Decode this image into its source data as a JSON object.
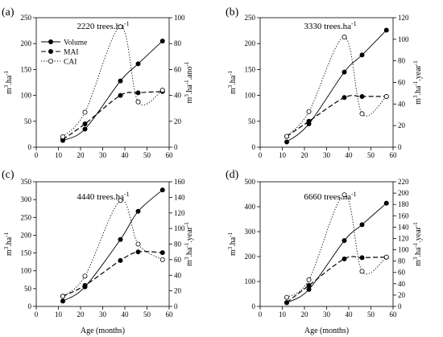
{
  "legend": {
    "placement": "top-left of panel (a)",
    "entries": [
      {
        "series": "Volume",
        "label": "Volume",
        "marker": "filled-circle",
        "line": "solid"
      },
      {
        "series": "MAI",
        "label": "MAI",
        "marker": "filled-circle",
        "line": "dashed"
      },
      {
        "series": "CAI",
        "label": "CAI",
        "marker": "open-circle",
        "line": "dotted"
      }
    ]
  },
  "chart_data": [
    {
      "type": "line",
      "panel": "(a)",
      "subtitle": "2220 trees.ha",
      "subtitle_sup": "-1",
      "xlabel": "",
      "ylabel_left": "m3.ha-1",
      "ylabel_right": "m3.ha-1.ano-1",
      "xlim": [
        0,
        60
      ],
      "xticks": [
        0,
        10,
        20,
        30,
        40,
        50,
        60
      ],
      "ylim_left": [
        0,
        250
      ],
      "yticks_left": [
        0,
        50,
        100,
        150,
        200,
        250
      ],
      "ylim_right": [
        0,
        100
      ],
      "yticks_right": [
        0,
        20,
        40,
        60,
        80,
        100
      ],
      "grid": false,
      "series": [
        {
          "name": "Volume",
          "axis": "left",
          "x": [
            12,
            22,
            38,
            46,
            57
          ],
          "y": [
            13,
            35,
            128,
            161,
            205
          ]
        },
        {
          "name": "MAI",
          "axis": "right",
          "x": [
            12,
            22,
            38,
            46,
            57
          ],
          "y": [
            6,
            18,
            40,
            42,
            43
          ]
        },
        {
          "name": "CAI",
          "axis": "right",
          "x": [
            12,
            22,
            38,
            46,
            57
          ],
          "y": [
            8,
            27,
            93,
            35,
            44
          ]
        }
      ]
    },
    {
      "type": "line",
      "panel": "(b)",
      "subtitle": "3330 trees.ha",
      "subtitle_sup": "-1",
      "xlabel": "",
      "ylabel_left": "m3.ha-1",
      "ylabel_right": "m3.ha-1.year-1",
      "xlim": [
        0,
        60
      ],
      "xticks": [
        0,
        10,
        20,
        30,
        40,
        50,
        60
      ],
      "ylim_left": [
        0,
        250
      ],
      "yticks_left": [
        0,
        50,
        100,
        150,
        200,
        250
      ],
      "ylim_right": [
        0,
        120
      ],
      "yticks_right": [
        0,
        20,
        40,
        60,
        80,
        100,
        120
      ],
      "grid": false,
      "series": [
        {
          "name": "Volume",
          "axis": "left",
          "x": [
            12,
            22,
            38,
            46,
            57
          ],
          "y": [
            10,
            45,
            145,
            178,
            226
          ]
        },
        {
          "name": "MAI",
          "axis": "right",
          "x": [
            12,
            22,
            38,
            46,
            57
          ],
          "y": [
            10,
            24,
            46,
            47,
            47
          ]
        },
        {
          "name": "CAI",
          "axis": "right",
          "x": [
            12,
            22,
            38,
            46,
            57
          ],
          "y": [
            10,
            33,
            102,
            31,
            47
          ]
        }
      ]
    },
    {
      "type": "line",
      "panel": "(c)",
      "subtitle": "4440 trees.ha",
      "subtitle_sup": "-1",
      "xlabel": "",
      "ylabel_left": "m3.ha-1",
      "ylabel_right": "m3.ha-1.year-1",
      "xlim": [
        0,
        60
      ],
      "xticks": [
        0,
        10,
        20,
        30,
        40,
        50,
        60
      ],
      "ylim_left": [
        0,
        350
      ],
      "yticks_left": [
        0,
        50,
        100,
        150,
        200,
        250,
        300,
        350
      ],
      "ylim_right": [
        0,
        160
      ],
      "yticks_right": [
        0,
        20,
        40,
        60,
        80,
        100,
        120,
        140,
        160
      ],
      "grid": false,
      "series": [
        {
          "name": "Volume",
          "axis": "left",
          "x": [
            12,
            22,
            38,
            46,
            57
          ],
          "y": [
            15,
            55,
            188,
            267,
            327
          ]
        },
        {
          "name": "MAI",
          "axis": "right",
          "x": [
            12,
            22,
            38,
            46,
            57
          ],
          "y": [
            13,
            27,
            59,
            70,
            69
          ]
        },
        {
          "name": "CAI",
          "axis": "right",
          "x": [
            12,
            22,
            38,
            46,
            57
          ],
          "y": [
            13,
            39,
            136,
            80,
            60
          ]
        }
      ]
    },
    {
      "type": "line",
      "panel": "(d)",
      "subtitle": "6660 trees.ha",
      "subtitle_sup": "-1",
      "xlabel": "",
      "ylabel_left": "m3.ha-1",
      "ylabel_right": "m3.ha-1.year-1",
      "xlim": [
        0,
        60
      ],
      "xticks": [
        0,
        10,
        20,
        30,
        40,
        50,
        60
      ],
      "ylim_left": [
        0,
        500
      ],
      "yticks_left": [
        0,
        100,
        200,
        300,
        400,
        500
      ],
      "ylim_right": [
        0,
        220
      ],
      "yticks_right": [
        0,
        20,
        40,
        60,
        80,
        100,
        120,
        140,
        160,
        180,
        200,
        220
      ],
      "grid": false,
      "series": [
        {
          "name": "Volume",
          "axis": "left",
          "x": [
            12,
            22,
            38,
            46,
            57
          ],
          "y": [
            15,
            68,
            264,
            328,
            414
          ]
        },
        {
          "name": "MAI",
          "axis": "right",
          "x": [
            12,
            22,
            38,
            46,
            57
          ],
          "y": [
            7,
            37,
            84,
            86,
            87
          ]
        },
        {
          "name": "CAI",
          "axis": "right",
          "x": [
            12,
            22,
            38,
            46,
            57
          ],
          "y": [
            16,
            47,
            197,
            62,
            87
          ]
        }
      ]
    }
  ],
  "shared_xlabel": "Age (months)"
}
